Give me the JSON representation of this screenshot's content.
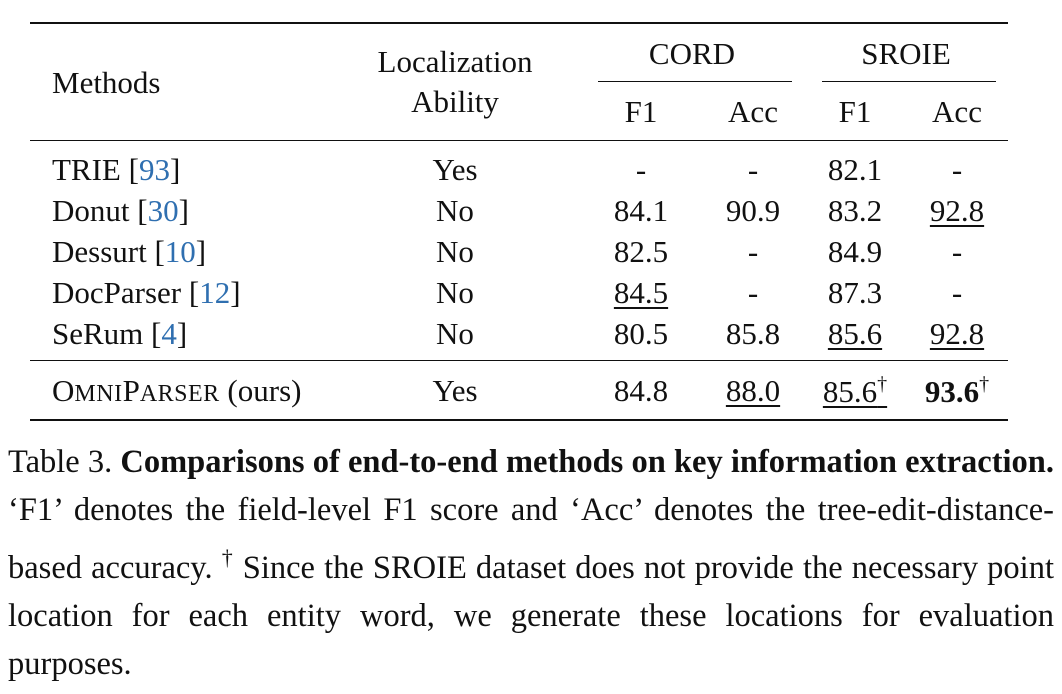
{
  "table": {
    "headers": {
      "methods": "Methods",
      "localization_line1": "Localization",
      "localization_line2": "Ability",
      "cord": "CORD",
      "sroie": "SROIE",
      "cord_f1": "F1",
      "cord_acc": "Acc",
      "sroie_f1": "F1",
      "sroie_acc": "Acc"
    },
    "rows": [
      {
        "name": "TRIE",
        "ref": "93",
        "loc": "Yes",
        "cord_f1": "-",
        "cord_acc": "-",
        "sroie_f1": "82.1",
        "sroie_acc": "-"
      },
      {
        "name": "Donut",
        "ref": "30",
        "loc": "No",
        "cord_f1": "84.1",
        "cord_acc": "90.9",
        "sroie_f1": "83.2",
        "sroie_acc": "92.8"
      },
      {
        "name": "Dessurt",
        "ref": "10",
        "loc": "No",
        "cord_f1": "82.5",
        "cord_acc": "-",
        "sroie_f1": "84.9",
        "sroie_acc": "-"
      },
      {
        "name": "DocParser",
        "ref": "12",
        "loc": "No",
        "cord_f1": "84.5",
        "cord_acc": "-",
        "sroie_f1": "87.3",
        "sroie_acc": "-"
      },
      {
        "name": "SeRum",
        "ref": "4",
        "loc": "No",
        "cord_f1": "80.5",
        "cord_acc": "85.8",
        "sroie_f1": "85.6",
        "sroie_acc": "92.8"
      }
    ],
    "ours": {
      "name_o": "O",
      "name_mni": "MNI",
      "name_p": "P",
      "name_arser": "ARSER",
      "suffix": "(ours)",
      "loc": "Yes",
      "cord_f1": "84.8",
      "cord_acc": "88.0",
      "sroie_f1": "85.6",
      "sroie_acc": "93.6",
      "dagger": "†"
    }
  },
  "caption": {
    "label": "Table 3.",
    "title": "Comparisons of end-to-end methods on key information extraction.",
    "text1": "‘F1’ denotes the field-level F1 score and ‘Acc’ denotes the tree-edit-distance-based accuracy.",
    "dagger": "†",
    "text2": "Since the SROIE dataset does not provide the necessary point location for each entity word, we generate these locations for evaluation purposes."
  }
}
